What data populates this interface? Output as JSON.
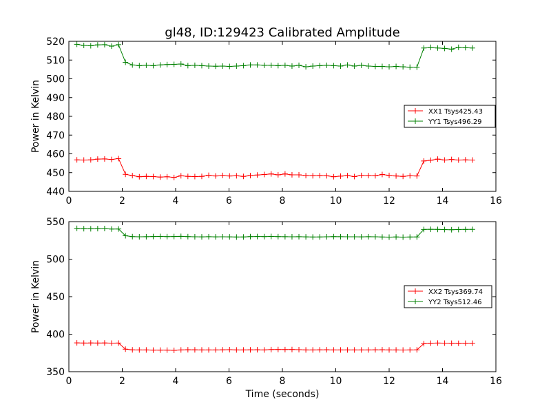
{
  "chart_data": [
    {
      "type": "line",
      "title": "gl48, ID:129423 Calibrated Amplitude",
      "xlabel": "",
      "ylabel": "Power in Kelvin",
      "xlim": [
        0,
        16
      ],
      "ylim": [
        440,
        520
      ],
      "xticks": [
        0,
        2,
        4,
        6,
        8,
        10,
        12,
        14,
        16
      ],
      "yticks": [
        440,
        450,
        460,
        470,
        480,
        490,
        500,
        510,
        520
      ],
      "legend_position": "center-right",
      "x": [
        0.3,
        0.56,
        0.82,
        1.08,
        1.34,
        1.6,
        1.86,
        2.12,
        2.38,
        2.64,
        2.9,
        3.16,
        3.42,
        3.68,
        3.94,
        4.2,
        4.46,
        4.72,
        4.98,
        5.24,
        5.5,
        5.76,
        6.02,
        6.28,
        6.54,
        6.8,
        7.06,
        7.32,
        7.58,
        7.84,
        8.1,
        8.36,
        8.62,
        8.88,
        9.14,
        9.4,
        9.66,
        9.92,
        10.18,
        10.44,
        10.7,
        10.96,
        11.22,
        11.48,
        11.74,
        12.0,
        12.26,
        12.52,
        12.78,
        13.04,
        13.3,
        13.56,
        13.82,
        14.08,
        14.34,
        14.6,
        14.86,
        15.12
      ],
      "series": [
        {
          "name": "XX1 Tsys425.43",
          "color": "#ff0000",
          "values": [
            456.8,
            456.7,
            456.8,
            457.2,
            457.3,
            457.0,
            457.5,
            449.1,
            448.4,
            447.8,
            448.0,
            447.9,
            447.6,
            447.8,
            447.4,
            448.3,
            448.0,
            447.9,
            448.0,
            448.6,
            448.2,
            448.5,
            448.2,
            448.3,
            448.0,
            448.4,
            448.7,
            449.0,
            449.3,
            448.8,
            449.3,
            448.8,
            448.8,
            448.4,
            448.3,
            448.4,
            448.3,
            447.8,
            448.1,
            448.4,
            447.9,
            448.5,
            448.4,
            448.3,
            449.0,
            448.5,
            448.2,
            448.0,
            448.3,
            448.2,
            456.2,
            456.6,
            457.2,
            456.7,
            457.0,
            456.7,
            456.8,
            456.7
          ]
        },
        {
          "name": "YY1 Tsys496.29",
          "color": "#008000",
          "values": [
            518.4,
            517.8,
            517.6,
            518.1,
            518.2,
            517.4,
            518.2,
            508.8,
            507.4,
            507.0,
            507.2,
            507.0,
            507.4,
            507.6,
            507.7,
            507.9,
            507.0,
            507.2,
            507.0,
            506.8,
            506.7,
            506.8,
            506.6,
            506.8,
            507.0,
            507.4,
            507.4,
            507.2,
            507.2,
            507.0,
            507.2,
            506.8,
            507.2,
            506.4,
            506.8,
            507.0,
            507.2,
            507.0,
            506.8,
            507.4,
            506.8,
            507.2,
            506.8,
            506.6,
            506.6,
            506.4,
            506.6,
            506.4,
            506.2,
            506.2,
            516.4,
            516.8,
            516.4,
            516.2,
            515.8,
            516.8,
            516.6,
            516.4
          ]
        }
      ]
    },
    {
      "type": "line",
      "title": "",
      "xlabel": "Time (seconds)",
      "ylabel": "Power in Kelvin",
      "xlim": [
        0,
        16
      ],
      "ylim": [
        350,
        550
      ],
      "xticks": [
        0,
        2,
        4,
        6,
        8,
        10,
        12,
        14,
        16
      ],
      "yticks": [
        350,
        400,
        450,
        500,
        550
      ],
      "legend_position": "center-right",
      "x": [
        0.3,
        0.56,
        0.82,
        1.08,
        1.34,
        1.6,
        1.86,
        2.12,
        2.38,
        2.64,
        2.9,
        3.16,
        3.42,
        3.68,
        3.94,
        4.2,
        4.46,
        4.72,
        4.98,
        5.24,
        5.5,
        5.76,
        6.02,
        6.28,
        6.54,
        6.8,
        7.06,
        7.32,
        7.58,
        7.84,
        8.1,
        8.36,
        8.62,
        8.88,
        9.14,
        9.4,
        9.66,
        9.92,
        10.18,
        10.44,
        10.7,
        10.96,
        11.22,
        11.48,
        11.74,
        12.0,
        12.26,
        12.52,
        12.78,
        13.04,
        13.3,
        13.56,
        13.82,
        14.08,
        14.34,
        14.6,
        14.86,
        15.12
      ],
      "series": [
        {
          "name": "XX2 Tsys369.74",
          "color": "#ff0000",
          "values": [
            388.4,
            388.2,
            388.3,
            388.2,
            388.3,
            388.1,
            388.2,
            380.0,
            379.1,
            379.0,
            379.0,
            378.8,
            378.8,
            378.8,
            378.4,
            379.0,
            379.3,
            379.1,
            379.0,
            379.0,
            379.0,
            379.1,
            379.4,
            379.0,
            379.0,
            379.1,
            379.2,
            379.0,
            379.5,
            379.6,
            379.5,
            379.6,
            379.4,
            379.0,
            379.0,
            379.1,
            379.2,
            379.0,
            379.0,
            379.0,
            379.0,
            379.0,
            379.0,
            379.1,
            379.2,
            379.0,
            379.0,
            378.9,
            379.0,
            379.1,
            387.4,
            388.0,
            388.2,
            388.1,
            388.0,
            387.9,
            388.0,
            388.0
          ]
        },
        {
          "name": "YY2 Tsys512.46",
          "color": "#008000",
          "values": [
            541.0,
            540.6,
            540.5,
            540.7,
            540.8,
            540.1,
            540.3,
            531.2,
            530.0,
            529.8,
            529.9,
            530.2,
            530.3,
            530.1,
            530.2,
            530.4,
            530.1,
            529.8,
            529.7,
            529.9,
            529.7,
            529.8,
            529.7,
            529.5,
            529.6,
            530.0,
            530.2,
            530.1,
            530.3,
            530.1,
            529.9,
            529.8,
            529.9,
            529.7,
            529.5,
            529.6,
            529.8,
            530.0,
            529.9,
            529.8,
            529.8,
            529.7,
            529.9,
            529.8,
            529.5,
            529.4,
            529.6,
            529.4,
            529.5,
            529.6,
            539.6,
            539.8,
            539.7,
            539.4,
            539.2,
            539.5,
            539.6,
            539.7
          ]
        }
      ]
    }
  ]
}
